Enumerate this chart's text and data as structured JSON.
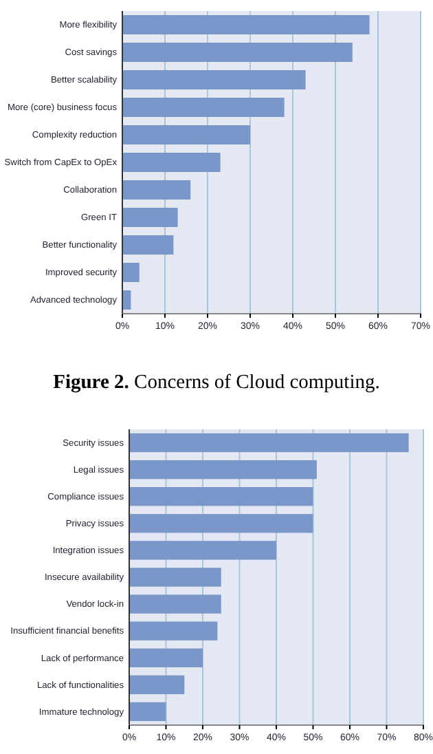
{
  "chart_data": [
    {
      "type": "bar",
      "orientation": "horizontal",
      "categories": [
        "More flexibility",
        "Cost savings",
        "Better scalability",
        "More (core) business focus",
        "Complexity reduction",
        "Switch from CapEx to OpEx",
        "Collaboration",
        "Green IT",
        "Better functionality",
        "Improved security",
        "Advanced technology"
      ],
      "values": [
        58,
        54,
        43,
        38,
        30,
        23,
        16,
        13,
        12,
        4,
        2
      ],
      "color": "#7b96c8",
      "xlim": [
        0,
        70
      ],
      "xticks": [
        {
          "value": 0,
          "label": "0%"
        },
        {
          "value": 10,
          "label": "10%"
        },
        {
          "value": 20,
          "label": "20%"
        },
        {
          "value": 30,
          "label": "30%"
        },
        {
          "value": 40,
          "label": "40%"
        },
        {
          "value": 50,
          "label": "50%"
        },
        {
          "value": 60,
          "label": "60%"
        },
        {
          "value": 70,
          "label": "70%"
        }
      ],
      "grid": "x"
    },
    {
      "type": "bar",
      "orientation": "horizontal",
      "title": "Figure 2. Concerns of Cloud computing.",
      "categories": [
        "Security issues",
        "Legal issues",
        "Compliance issues",
        "Privacy issues",
        "Integration issues",
        "Insecure availability",
        "Vendor lock-in",
        "Insufficient financial benefits",
        "Lack of performance",
        "Lack of functionalities",
        "Immature technology"
      ],
      "values": [
        76,
        51,
        50,
        50,
        40,
        25,
        25,
        24,
        20,
        15,
        10
      ],
      "color": "#7b96c8",
      "xlim": [
        0,
        80
      ],
      "xticks": [
        {
          "value": 0,
          "label": "0%"
        },
        {
          "value": 10,
          "label": "10%"
        },
        {
          "value": 20,
          "label": "20%"
        },
        {
          "value": 30,
          "label": "30%"
        },
        {
          "value": 40,
          "label": "40%"
        },
        {
          "value": 50,
          "label": "50%"
        },
        {
          "value": 60,
          "label": "60%"
        },
        {
          "value": 70,
          "label": "70%"
        },
        {
          "value": 80,
          "label": "80%"
        }
      ],
      "grid": "x"
    }
  ]
}
